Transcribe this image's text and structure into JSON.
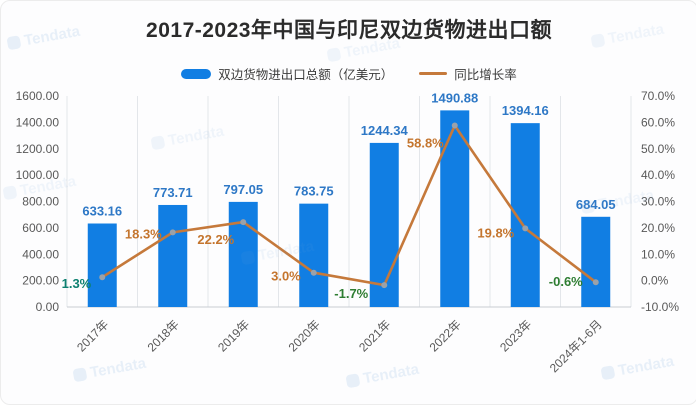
{
  "title": "2017-2023年中国与印尼双边货物进出口额",
  "legend": [
    {
      "label": "双边货物进出口总额（亿美元）",
      "type": "bar",
      "color": "#117ee3"
    },
    {
      "label": "同比增长率",
      "type": "line",
      "color": "#c5793b"
    }
  ],
  "watermark": "Tendata",
  "chart_data": {
    "type": "bar+line",
    "title": "2017-2023年中国与印尼双边货物进出口额",
    "categories": [
      "2017年",
      "2018年",
      "2019年",
      "2020年",
      "2021年",
      "2022年",
      "2023年",
      "2024年1-6月"
    ],
    "series": [
      {
        "name": "双边货物进出口总额（亿美元）",
        "type": "bar",
        "axis": "left",
        "color": "#117ee3",
        "label_color": "#2e78c6",
        "values": [
          633.16,
          773.71,
          797.05,
          783.75,
          1244.34,
          1490.88,
          1394.16,
          684.05
        ]
      },
      {
        "name": "同比增长率",
        "type": "line",
        "axis": "right",
        "color": "#c5793b",
        "marker_color": "#9aa1a9",
        "values": [
          1.3,
          18.3,
          22.2,
          3.0,
          -1.7,
          58.8,
          19.8,
          -0.6
        ],
        "labels": [
          "1.3%",
          "18.3%",
          "22.2%",
          "3.0%",
          "-1.7%",
          "58.8%",
          "19.8%",
          "-0.6%"
        ],
        "label_colors": [
          "#0d8070",
          "#c4752e",
          "#c4752e",
          "#c4752e",
          "#2e7d32",
          "#c4752e",
          "#c4752e",
          "#2e7d32"
        ],
        "label_offsets": [
          [
            -11,
            11
          ],
          [
            -11,
            6
          ],
          [
            -9,
            22
          ],
          [
            -13,
            8
          ],
          [
            -16,
            13
          ],
          [
            -11,
            22
          ],
          [
            -11,
            9
          ],
          [
            -13,
            4
          ]
        ]
      }
    ],
    "left_axis": {
      "ticks": [
        "1600.00",
        "1400.00",
        "1200.00",
        "1000.00",
        "800.00",
        "600.00",
        "400.00",
        "200.00",
        "0.00"
      ],
      "min": 0,
      "max": 1600
    },
    "right_axis": {
      "ticks": [
        "70.0%",
        "60.0%",
        "50.0%",
        "40.0%",
        "30.0%",
        "20.0%",
        "10.0%",
        "0.0%",
        "-10.0%"
      ],
      "min": -10,
      "max": 70
    },
    "grid": "vertical",
    "legend_position": "top"
  }
}
